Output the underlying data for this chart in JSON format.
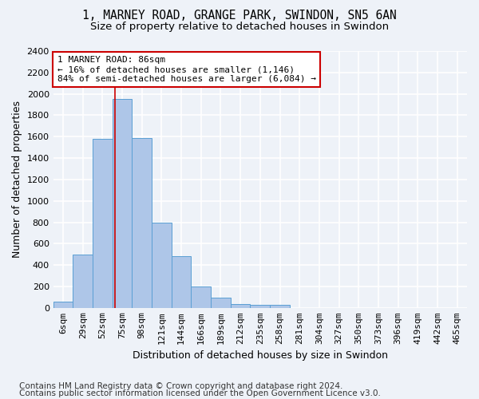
{
  "title_line1": "1, MARNEY ROAD, GRANGE PARK, SWINDON, SN5 6AN",
  "title_line2": "Size of property relative to detached houses in Swindon",
  "xlabel": "Distribution of detached houses by size in Swindon",
  "ylabel": "Number of detached properties",
  "categories": [
    "6sqm",
    "29sqm",
    "52sqm",
    "75sqm",
    "98sqm",
    "121sqm",
    "144sqm",
    "166sqm",
    "189sqm",
    "212sqm",
    "235sqm",
    "258sqm",
    "281sqm",
    "304sqm",
    "327sqm",
    "350sqm",
    "373sqm",
    "396sqm",
    "419sqm",
    "442sqm",
    "465sqm"
  ],
  "values": [
    60,
    500,
    1580,
    1950,
    1590,
    800,
    480,
    200,
    95,
    35,
    30,
    25,
    0,
    0,
    0,
    0,
    0,
    0,
    0,
    0,
    0
  ],
  "bar_color": "#aec6e8",
  "bar_edge_color": "#5a9fd4",
  "red_line_x": 2.62,
  "annotation_text": "1 MARNEY ROAD: 86sqm\n← 16% of detached houses are smaller (1,146)\n84% of semi-detached houses are larger (6,084) →",
  "annotation_box_color": "#ffffff",
  "annotation_box_edge_color": "#cc0000",
  "vline_color": "#cc0000",
  "ylim": [
    0,
    2400
  ],
  "yticks": [
    0,
    200,
    400,
    600,
    800,
    1000,
    1200,
    1400,
    1600,
    1800,
    2000,
    2200,
    2400
  ],
  "footer_line1": "Contains HM Land Registry data © Crown copyright and database right 2024.",
  "footer_line2": "Contains public sector information licensed under the Open Government Licence v3.0.",
  "bg_color": "#eef2f8",
  "plot_bg_color": "#eef2f8",
  "grid_color": "#ffffff",
  "title_fontsize": 10.5,
  "subtitle_fontsize": 9.5,
  "axis_label_fontsize": 9,
  "tick_fontsize": 8,
  "footer_fontsize": 7.5
}
